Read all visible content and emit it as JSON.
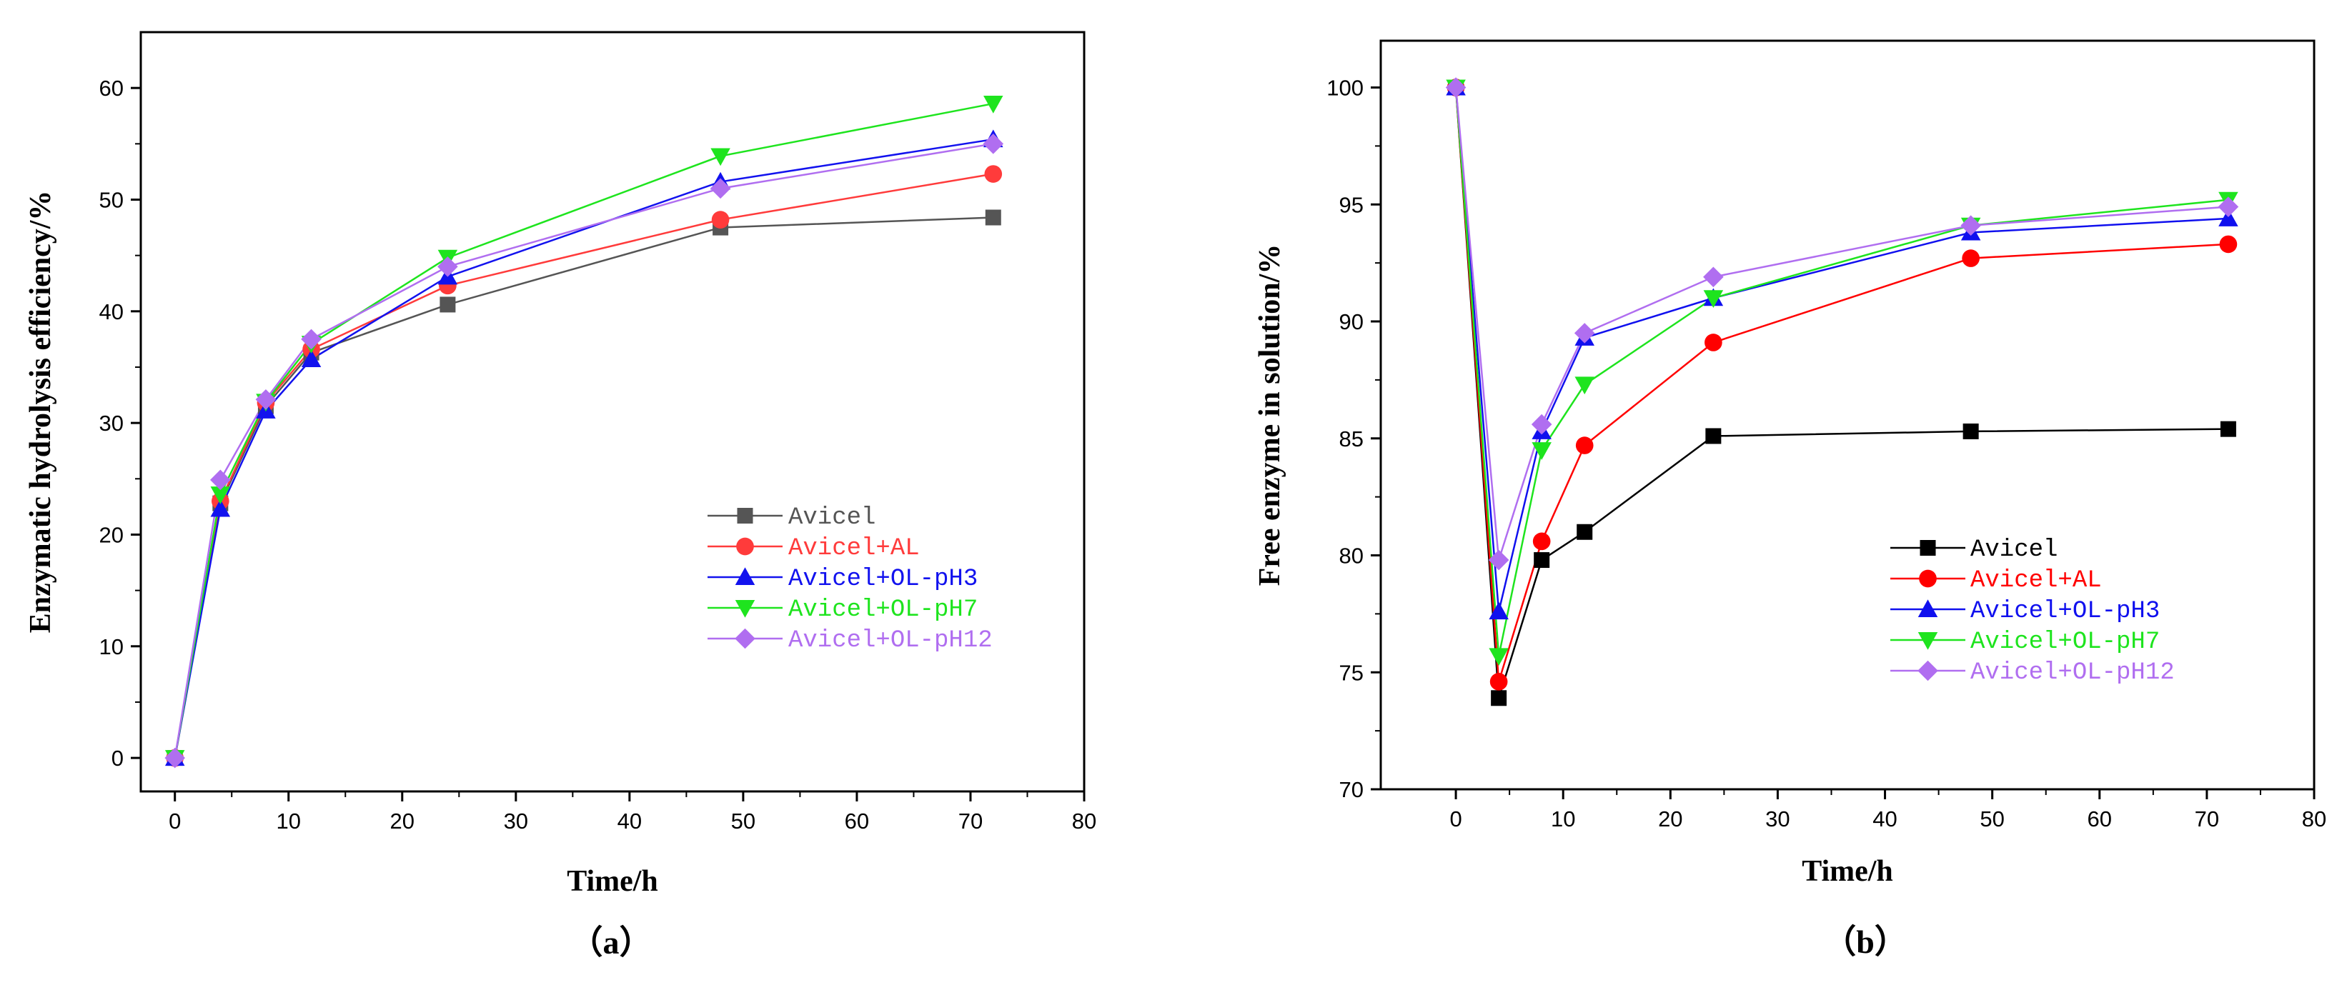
{
  "chart_data": [
    {
      "type": "line",
      "panel_label": "（a）",
      "xlabel": "Time/h",
      "ylabel": "Enzymatic hydrolysis efficiency/%",
      "xlim": [
        -3,
        80
      ],
      "ylim": [
        -3,
        65
      ],
      "xticks": [
        0,
        10,
        20,
        30,
        40,
        50,
        60,
        70,
        80
      ],
      "yticks": [
        0,
        10,
        20,
        30,
        40,
        50,
        60
      ],
      "legend_position": "bottom-right",
      "x": [
        0,
        4,
        8,
        12,
        24,
        48,
        72
      ],
      "series": [
        {
          "name": "Avicel",
          "color": "#555555",
          "marker": "square",
          "values": [
            0,
            22.8,
            31.5,
            36.3,
            40.6,
            47.5,
            48.4
          ]
        },
        {
          "name": "Avicel+AL",
          "color": "#ff3b3b",
          "marker": "circle",
          "values": [
            0,
            23.0,
            31.8,
            36.6,
            42.3,
            48.2,
            52.3
          ]
        },
        {
          "name": "Avicel+OL-pH3",
          "color": "#1212ee",
          "marker": "triangle-up",
          "values": [
            0,
            22.3,
            31.1,
            35.7,
            43.1,
            51.6,
            55.4
          ]
        },
        {
          "name": "Avicel+OL-pH7",
          "color": "#1ee41e",
          "marker": "triangle-down",
          "values": [
            0,
            23.6,
            31.9,
            37.1,
            44.8,
            53.9,
            58.6
          ]
        },
        {
          "name": "Avicel+OL-pH12",
          "color": "#b06ef0",
          "marker": "diamond",
          "values": [
            0,
            24.9,
            32.1,
            37.5,
            44.0,
            51.0,
            55.0
          ]
        }
      ]
    },
    {
      "type": "line",
      "panel_label": "（b）",
      "xlabel": "Time/h",
      "ylabel": "Free enzyme in solution/%",
      "xlim": [
        -7,
        80
      ],
      "ylim": [
        70,
        102
      ],
      "xticks": [
        0,
        10,
        20,
        30,
        40,
        50,
        60,
        70,
        80
      ],
      "yticks": [
        70,
        75,
        80,
        85,
        90,
        95,
        100
      ],
      "legend_position": "bottom-right",
      "x": [
        0,
        4,
        8,
        12,
        24,
        48,
        72
      ],
      "series": [
        {
          "name": "Avicel",
          "color": "#000000",
          "marker": "square",
          "values": [
            100,
            73.9,
            79.8,
            81.0,
            85.1,
            85.3,
            85.4
          ]
        },
        {
          "name": "Avicel+AL",
          "color": "#ff0000",
          "marker": "circle",
          "values": [
            100,
            74.6,
            80.6,
            84.7,
            89.1,
            92.7,
            93.3
          ]
        },
        {
          "name": "Avicel+OL-pH3",
          "color": "#1010ee",
          "marker": "triangle-up",
          "values": [
            100,
            77.6,
            85.3,
            89.3,
            91.0,
            93.8,
            94.4
          ]
        },
        {
          "name": "Avicel+OL-pH7",
          "color": "#1ee41e",
          "marker": "triangle-down",
          "values": [
            100,
            75.7,
            84.5,
            87.3,
            91.0,
            94.1,
            95.2
          ]
        },
        {
          "name": "Avicel+OL-pH12",
          "color": "#b06ef0",
          "marker": "diamond",
          "values": [
            100,
            79.8,
            85.6,
            89.5,
            91.9,
            94.1,
            94.9
          ]
        }
      ]
    }
  ]
}
